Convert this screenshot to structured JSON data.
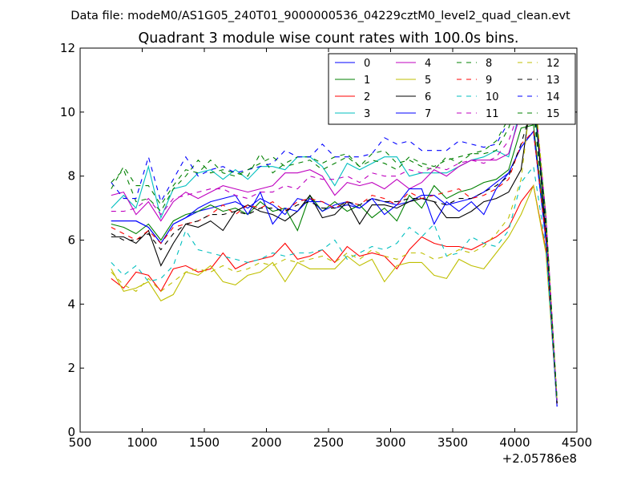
{
  "suptitle": "Data file: modeM0/AS1G05_240T01_9000000536_04229cztM0_level2_quad_clean.evt",
  "chart_data": {
    "type": "line",
    "title": "Quadrant 3 module wise count rates with 100.0s bins.",
    "xlabel": "",
    "ylabel": "",
    "x_offset_label": "+2.05786e8",
    "xlim": [
      500,
      4500
    ],
    "ylim": [
      0,
      12
    ],
    "xticks": [
      500,
      1000,
      1500,
      2000,
      2500,
      3000,
      3500,
      4000,
      4500
    ],
    "yticks": [
      0,
      2,
      4,
      6,
      8,
      10,
      12
    ],
    "grid": false,
    "legend_placement": "top-right",
    "legend_columns": 4,
    "x": [
      750,
      850,
      950,
      1050,
      1150,
      1250,
      1350,
      1450,
      1550,
      1650,
      1750,
      1850,
      1950,
      2050,
      2150,
      2250,
      2350,
      2450,
      2550,
      2650,
      2750,
      2850,
      2950,
      3050,
      3150,
      3250,
      3350,
      3450,
      3550,
      3650,
      3750,
      3850,
      3950,
      4050,
      4150,
      4250,
      4340
    ],
    "series": [
      {
        "name": "0",
        "color": "#0000ff",
        "dash": "solid",
        "values": [
          6.6,
          6.6,
          6.6,
          6.4,
          5.9,
          6.5,
          6.7,
          6.9,
          7.0,
          7.1,
          7.2,
          7.0,
          7.3,
          7.1,
          6.8,
          7.3,
          7.2,
          7.2,
          7.0,
          7.1,
          7.0,
          7.3,
          7.2,
          7.1,
          7.2,
          7.4,
          7.4,
          7.1,
          7.2,
          7.3,
          7.5,
          7.8,
          8.1,
          8.9,
          9.4,
          6.0,
          0.8
        ]
      },
      {
        "name": "1",
        "color": "#008000",
        "dash": "solid",
        "values": [
          6.5,
          6.4,
          6.2,
          6.5,
          6.0,
          6.6,
          6.8,
          6.9,
          7.1,
          6.9,
          7.0,
          6.8,
          7.2,
          6.9,
          7.0,
          6.3,
          7.4,
          6.9,
          7.2,
          6.9,
          7.1,
          6.7,
          7.0,
          6.6,
          7.4,
          7.0,
          7.7,
          7.3,
          7.5,
          7.6,
          7.8,
          7.9,
          8.2,
          9.5,
          9.6,
          6.2,
          0.9
        ]
      },
      {
        "name": "2",
        "color": "#ff0000",
        "dash": "solid",
        "values": [
          4.8,
          4.5,
          5.0,
          4.9,
          4.4,
          5.1,
          5.2,
          5.0,
          5.1,
          5.6,
          5.1,
          5.3,
          5.4,
          5.5,
          5.9,
          5.4,
          5.5,
          5.7,
          5.3,
          5.8,
          5.5,
          5.6,
          5.5,
          5.1,
          5.7,
          6.1,
          5.9,
          5.8,
          5.8,
          5.7,
          5.9,
          6.1,
          6.4,
          7.2,
          7.7,
          5.7,
          0.9
        ]
      },
      {
        "name": "3",
        "color": "#00bfbf",
        "dash": "solid",
        "values": [
          7.0,
          7.4,
          7.0,
          8.3,
          6.7,
          7.6,
          7.7,
          8.1,
          8.2,
          7.9,
          8.2,
          7.9,
          8.3,
          8.3,
          8.2,
          8.6,
          8.6,
          8.3,
          7.7,
          8.4,
          8.2,
          8.4,
          8.6,
          8.6,
          8.0,
          8.1,
          8.1,
          8.1,
          8.3,
          8.5,
          8.6,
          8.8,
          8.6,
          10.2,
          10.4,
          6.6,
          1.0
        ]
      },
      {
        "name": "4",
        "color": "#bf00bf",
        "dash": "solid",
        "values": [
          7.4,
          7.5,
          6.8,
          7.2,
          6.6,
          7.2,
          7.5,
          7.3,
          7.5,
          7.7,
          7.6,
          7.5,
          7.6,
          7.7,
          8.1,
          8.1,
          8.2,
          8.0,
          7.4,
          7.8,
          7.7,
          7.8,
          7.6,
          7.9,
          7.6,
          7.8,
          8.2,
          8.0,
          8.3,
          8.5,
          8.5,
          8.5,
          8.7,
          10.0,
          10.8,
          6.7,
          1.0
        ]
      },
      {
        "name": "5",
        "color": "#bfbf00",
        "dash": "solid",
        "values": [
          5.1,
          4.4,
          4.5,
          4.7,
          4.1,
          4.3,
          5.0,
          4.9,
          5.2,
          4.7,
          4.6,
          4.9,
          5.0,
          5.3,
          4.7,
          5.3,
          5.1,
          5.1,
          5.1,
          5.5,
          5.2,
          5.4,
          4.7,
          5.2,
          5.3,
          5.3,
          4.9,
          4.8,
          5.4,
          5.2,
          5.1,
          5.6,
          6.1,
          6.8,
          7.7,
          5.6,
          0.9
        ]
      },
      {
        "name": "6",
        "color": "#000000",
        "dash": "solid",
        "values": [
          6.1,
          6.1,
          5.9,
          6.3,
          5.2,
          5.9,
          6.5,
          6.4,
          6.6,
          6.3,
          6.9,
          7.1,
          6.9,
          6.8,
          6.6,
          6.9,
          7.4,
          6.7,
          6.8,
          7.2,
          6.5,
          7.1,
          7.1,
          7.0,
          7.2,
          7.3,
          7.2,
          6.7,
          6.7,
          6.9,
          7.2,
          7.3,
          7.5,
          8.2,
          10.9,
          6.1,
          0.9
        ]
      },
      {
        "name": "7",
        "color": "#0000ff",
        "dash": "solid",
        "values": [
          6.6,
          6.6,
          6.6,
          6.4,
          5.9,
          6.5,
          6.7,
          7.0,
          7.2,
          7.3,
          7.4,
          6.8,
          7.5,
          6.5,
          7.0,
          6.9,
          7.3,
          6.9,
          7.1,
          7.2,
          7.0,
          7.3,
          6.8,
          7.1,
          7.6,
          7.6,
          6.5,
          7.2,
          6.9,
          7.2,
          6.8,
          7.6,
          8.1,
          8.9,
          9.4,
          6.0,
          0.8
        ]
      },
      {
        "name": "8",
        "color": "#008000",
        "dash": "dashed",
        "values": [
          7.8,
          8.2,
          7.2,
          7.3,
          6.9,
          7.6,
          8.0,
          8.5,
          8.1,
          8.2,
          8.1,
          8.0,
          8.7,
          8.1,
          8.4,
          8.6,
          8.6,
          8.4,
          8.6,
          8.7,
          8.3,
          8.7,
          8.8,
          8.4,
          8.5,
          8.3,
          8.2,
          8.6,
          8.4,
          8.7,
          8.7,
          8.8,
          9.5,
          10.7,
          10.0,
          6.5,
          1.0
        ]
      },
      {
        "name": "9",
        "color": "#ff0000",
        "dash": "dashed",
        "values": [
          6.4,
          6.2,
          6.0,
          6.3,
          5.9,
          6.4,
          6.5,
          6.6,
          6.8,
          7.1,
          6.8,
          7.1,
          7.0,
          7.2,
          6.9,
          7.2,
          7.3,
          7.2,
          7.0,
          7.2,
          7.1,
          7.4,
          7.3,
          7.1,
          7.5,
          7.3,
          7.4,
          7.5,
          7.6,
          7.3,
          7.4,
          7.6,
          7.9,
          9.0,
          9.4,
          6.1,
          0.9
        ]
      },
      {
        "name": "10",
        "color": "#00bfbf",
        "dash": "dashed",
        "values": [
          5.3,
          4.9,
          5.2,
          4.7,
          4.8,
          5.2,
          6.3,
          5.7,
          5.6,
          5.5,
          5.4,
          5.3,
          5.4,
          5.6,
          5.5,
          5.6,
          5.6,
          5.7,
          6.0,
          5.4,
          5.6,
          5.8,
          5.7,
          5.9,
          6.4,
          6.1,
          6.5,
          5.5,
          5.6,
          6.1,
          5.9,
          5.8,
          6.3,
          7.8,
          8.3,
          5.8,
          0.9
        ]
      },
      {
        "name": "11",
        "color": "#bf00bf",
        "dash": "dashed",
        "values": [
          6.9,
          6.9,
          7.0,
          7.3,
          6.8,
          7.3,
          7.4,
          7.5,
          7.6,
          7.6,
          7.4,
          7.3,
          7.5,
          7.5,
          7.7,
          7.6,
          8.0,
          7.9,
          7.9,
          8.0,
          7.8,
          8.1,
          8.0,
          8.0,
          8.2,
          8.1,
          8.3,
          8.2,
          8.4,
          8.5,
          8.4,
          8.6,
          9.1,
          10.2,
          10.9,
          6.8,
          1.0
        ]
      },
      {
        "name": "12",
        "color": "#bfbf00",
        "dash": "dashed",
        "values": [
          5.0,
          4.6,
          4.4,
          4.8,
          4.4,
          4.7,
          5.0,
          5.1,
          5.0,
          5.2,
          5.0,
          5.1,
          5.3,
          5.2,
          5.4,
          5.3,
          5.4,
          5.5,
          5.3,
          5.6,
          5.4,
          5.7,
          5.5,
          5.4,
          5.6,
          5.6,
          5.4,
          5.5,
          5.7,
          5.6,
          5.8,
          6.2,
          6.7,
          7.9,
          11.1,
          6.7,
          1.0
        ]
      },
      {
        "name": "13",
        "color": "#000000",
        "dash": "dashed",
        "values": [
          6.2,
          6.0,
          6.0,
          6.2,
          5.7,
          6.2,
          6.5,
          6.6,
          6.8,
          6.8,
          6.9,
          6.8,
          7.0,
          7.0,
          6.9,
          7.1,
          7.2,
          7.0,
          7.0,
          7.2,
          7.1,
          7.3,
          7.2,
          7.2,
          7.3,
          7.3,
          7.2,
          7.1,
          7.3,
          7.3,
          7.5,
          7.7,
          8.0,
          9.0,
          10.3,
          6.4,
          0.9
        ]
      },
      {
        "name": "14",
        "color": "#0000ff",
        "dash": "dashed",
        "values": [
          7.8,
          7.3,
          7.3,
          8.6,
          7.2,
          7.9,
          8.6,
          8.0,
          8.2,
          8.3,
          8.1,
          8.2,
          8.3,
          8.4,
          8.8,
          8.6,
          8.6,
          9.0,
          8.6,
          8.6,
          8.6,
          8.7,
          9.2,
          9.0,
          9.1,
          8.8,
          8.8,
          8.8,
          9.1,
          9.0,
          8.9,
          9.0,
          9.7,
          10.5,
          10.4,
          6.7,
          1.0
        ]
      },
      {
        "name": "15",
        "color": "#008000",
        "dash": "dashed",
        "values": [
          7.6,
          8.3,
          7.7,
          7.7,
          7.1,
          7.7,
          8.2,
          8.1,
          8.5,
          8.1,
          8.0,
          8.2,
          8.4,
          8.6,
          8.3,
          8.4,
          8.5,
          8.2,
          8.4,
          8.6,
          8.3,
          8.5,
          8.4,
          8.2,
          8.6,
          8.4,
          8.3,
          8.5,
          8.6,
          8.7,
          8.8,
          9.1,
          9.8,
          10.8,
          10.5,
          6.8,
          1.0
        ]
      }
    ]
  }
}
